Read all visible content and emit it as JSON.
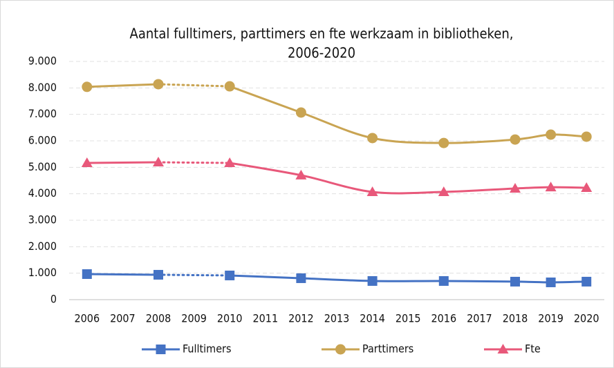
{
  "chart_data": {
    "type": "line",
    "title": [
      "Aantal fulltimers, parttimers en fte werkzaam in bibliotheken,",
      "2006-2020"
    ],
    "x": [
      2006,
      2008,
      2009,
      2010,
      2012,
      2014,
      2016,
      2018,
      2019,
      2020
    ],
    "series": [
      {
        "name": "Fulltimers",
        "color": "#4472c4",
        "marker": "square",
        "values": [
          966,
          940,
          null,
          914,
          810,
          705,
          705,
          680,
          653,
          680
        ]
      },
      {
        "name": "Parttimers",
        "color": "#c9a452",
        "marker": "circle",
        "values": [
          8040,
          8140,
          null,
          8060,
          7070,
          6105,
          5920,
          6050,
          6235,
          6157
        ]
      },
      {
        "name": "Fte",
        "color": "#e8587a",
        "marker": "triangle",
        "values": [
          5165,
          5190,
          null,
          5165,
          4700,
          4070,
          4070,
          4200,
          4250,
          4225
        ]
      }
    ],
    "xlim": [
      2005.5,
      2020.5
    ],
    "xticks": [
      2006,
      2007,
      2008,
      2009,
      2010,
      2011,
      2012,
      2013,
      2014,
      2015,
      2016,
      2017,
      2018,
      2019,
      2020
    ],
    "ylim": [
      0,
      9000
    ],
    "yticks": [
      0,
      {
        "value": 1000,
        "label": "1.000"
      },
      {
        "value": 2000,
        "label": "2.000"
      },
      {
        "value": 3000,
        "label": "3.000"
      },
      {
        "value": 4000,
        "label": "4.000"
      },
      {
        "value": 5000,
        "label": "5.000"
      },
      {
        "value": 6000,
        "label": "6.000"
      },
      {
        "value": 7000,
        "label": "7.000"
      },
      {
        "value": 8000,
        "label": "8.000"
      },
      {
        "value": 9000,
        "label": "9.000"
      }
    ],
    "grid": true,
    "smooth": true,
    "gap_style": "dotted",
    "legend": "bottom"
  }
}
